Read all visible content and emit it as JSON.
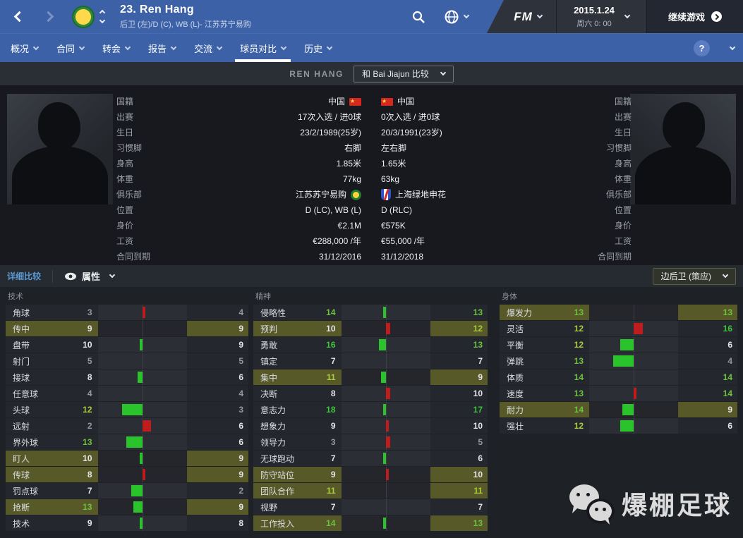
{
  "app": {
    "title": "23. Ren Hang",
    "subtitle": "后卫 (左)/D (C), WB (L)- 江苏苏宁易购",
    "fm_logo": "FM",
    "date": "2015.1.24",
    "weekday_time": "周六 0: 00",
    "continue_label": "继续游戏",
    "help_label": "?"
  },
  "nav": {
    "tabs": [
      {
        "label": "概况",
        "active": false
      },
      {
        "label": "合同",
        "active": false
      },
      {
        "label": "转会",
        "active": false
      },
      {
        "label": "报告",
        "active": false
      },
      {
        "label": "交流",
        "active": false
      },
      {
        "label": "球员对比",
        "active": true
      },
      {
        "label": "历史",
        "active": false
      }
    ]
  },
  "compare": {
    "player_name": "REN HANG",
    "compare_dropdown": "和 Bai Jiajun 比较"
  },
  "info": {
    "rows": [
      {
        "label": "国籍",
        "p1": "中国",
        "p1_icon": "flag-china",
        "p2": "中国",
        "p2_icon": "flag-china"
      },
      {
        "label": "出赛",
        "p1": "17次入选 / 进0球",
        "p2": "0次入选 / 进0球"
      },
      {
        "label": "生日",
        "p1": "23/2/1989(25岁)",
        "p2": "20/3/1991(23岁)"
      },
      {
        "label": "习惯脚",
        "p1": "右脚",
        "p2": "左右脚"
      },
      {
        "label": "身高",
        "p1": "1.85米",
        "p2": "1.65米"
      },
      {
        "label": "体重",
        "p1": "77kg",
        "p2": "63kg"
      },
      {
        "label": "俱乐部",
        "p1": "江苏苏宁易购",
        "p1_icon": "badge-jiangsu",
        "p2": "上海绿地申花",
        "p2_icon": "badge-shenhua"
      },
      {
        "label": "位置",
        "p1": "D (LC), WB (L)",
        "p2": "D (RLC)"
      },
      {
        "label": "身价",
        "p1": "€2.1M",
        "p2": "€575K"
      },
      {
        "label": "工资",
        "p1": "€288,000 /年",
        "p2": "€55,000 /年"
      },
      {
        "label": "合同到期",
        "p1": "31/12/2016",
        "p2": "31/12/2018"
      }
    ]
  },
  "attributes": {
    "toolbar": {
      "detail_link": "详细比较",
      "view_label": "属性",
      "role_label": "边后卫 (策应)"
    },
    "groups": [
      {
        "title": "技术",
        "rows": [
          {
            "label": "角球",
            "p1": 3,
            "p2": 4,
            "key": false
          },
          {
            "label": "传中",
            "p1": 9,
            "p2": 9,
            "key": true
          },
          {
            "label": "盘带",
            "p1": 10,
            "p2": 9,
            "key": false
          },
          {
            "label": "射门",
            "p1": 5,
            "p2": 5,
            "key": false
          },
          {
            "label": "接球",
            "p1": 8,
            "p2": 6,
            "key": false
          },
          {
            "label": "任意球",
            "p1": 4,
            "p2": 4,
            "key": false
          },
          {
            "label": "头球",
            "p1": 12,
            "p2": 3,
            "key": false
          },
          {
            "label": "远射",
            "p1": 2,
            "p2": 6,
            "key": false
          },
          {
            "label": "界外球",
            "p1": 13,
            "p2": 6,
            "key": false
          },
          {
            "label": "盯人",
            "p1": 10,
            "p2": 9,
            "key": true
          },
          {
            "label": "传球",
            "p1": 8,
            "p2": 9,
            "key": true
          },
          {
            "label": "罚点球",
            "p1": 7,
            "p2": 2,
            "key": false
          },
          {
            "label": "抢断",
            "p1": 13,
            "p2": 9,
            "key": true
          },
          {
            "label": "技术",
            "p1": 9,
            "p2": 8,
            "key": false
          }
        ]
      },
      {
        "title": "精神",
        "rows": [
          {
            "label": "侵略性",
            "p1": 14,
            "p2": 13,
            "key": false
          },
          {
            "label": "预判",
            "p1": 10,
            "p2": 12,
            "key": true
          },
          {
            "label": "勇敢",
            "p1": 16,
            "p2": 13,
            "key": false
          },
          {
            "label": "镇定",
            "p1": 7,
            "p2": 7,
            "key": false
          },
          {
            "label": "集中",
            "p1": 11,
            "p2": 9,
            "key": true
          },
          {
            "label": "决断",
            "p1": 8,
            "p2": 10,
            "key": false
          },
          {
            "label": "意志力",
            "p1": 18,
            "p2": 17,
            "key": false
          },
          {
            "label": "想象力",
            "p1": 9,
            "p2": 10,
            "key": false
          },
          {
            "label": "领导力",
            "p1": 3,
            "p2": 5,
            "key": false
          },
          {
            "label": "无球跑动",
            "p1": 7,
            "p2": 6,
            "key": false
          },
          {
            "label": "防守站位",
            "p1": 9,
            "p2": 10,
            "key": true
          },
          {
            "label": "团队合作",
            "p1": 11,
            "p2": 11,
            "key": true
          },
          {
            "label": "视野",
            "p1": 7,
            "p2": 7,
            "key": false
          },
          {
            "label": "工作投入",
            "p1": 14,
            "p2": 13,
            "key": true
          }
        ]
      },
      {
        "title": "身体",
        "rows": [
          {
            "label": "爆发力",
            "p1": 13,
            "p2": 13,
            "key": true
          },
          {
            "label": "灵活",
            "p1": 12,
            "p2": 16,
            "key": false
          },
          {
            "label": "平衡",
            "p1": 12,
            "p2": 6,
            "key": false
          },
          {
            "label": "弹跳",
            "p1": 13,
            "p2": 4,
            "key": false
          },
          {
            "label": "体质",
            "p1": 14,
            "p2": 14,
            "key": false
          },
          {
            "label": "速度",
            "p1": 13,
            "p2": 14,
            "key": false
          },
          {
            "label": "耐力",
            "p1": 14,
            "p2": 9,
            "key": true
          },
          {
            "label": "强壮",
            "p1": 12,
            "p2": 6,
            "key": false
          }
        ]
      }
    ]
  },
  "watermark": {
    "text": "爆棚足球"
  },
  "colors": {
    "topbar_blue": "#3c61a6",
    "highlight_olive": "#575929",
    "bar_green": "#2bc32b",
    "bar_red": "#bf1d1d",
    "value_low": "#95989b",
    "value_mid": "#e2e4e6",
    "value_good": "#a9cd3c",
    "value_high": "#6cc23c",
    "value_top": "#3cc53c"
  }
}
